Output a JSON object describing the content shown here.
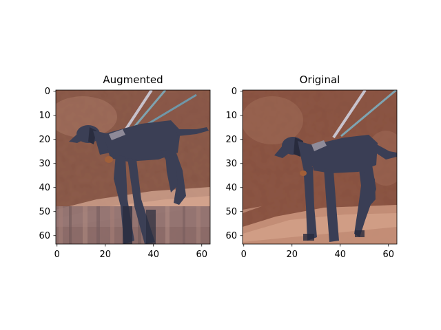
{
  "figure": {
    "background": "#ffffff"
  },
  "panels": [
    {
      "title": "Augmented",
      "image": {
        "description_colors": {
          "ground_dark": "#7a4a3c",
          "ground_mid": "#9a6a58",
          "ground_light": "#c89a86",
          "sandy_band": "#d9a892",
          "streak_band": "#8c6e6e",
          "dog_body": "#3b3f55",
          "dog_shadow": "#2a2d3f",
          "leash": "#7fa3b0",
          "collar": "#8e8a98",
          "tan_markings": "#a0603a"
        },
        "pixel_grid": 64
      },
      "x_ticks": [
        "0",
        "20",
        "40",
        "60"
      ],
      "x_tick_values": [
        0,
        20,
        40,
        60
      ],
      "y_ticks": [
        "0",
        "10",
        "20",
        "30",
        "40",
        "50",
        "60"
      ],
      "y_tick_values": [
        0,
        10,
        20,
        30,
        40,
        50,
        60
      ]
    },
    {
      "title": "Original",
      "image": {
        "description_colors": {
          "ground_dark": "#7c4637",
          "ground_mid": "#9c6452",
          "ground_light": "#c9937c",
          "sandy_band": "#d6a48c",
          "dog_body": "#3a3e55",
          "dog_shadow": "#282b3d",
          "leash": "#7ea4b2",
          "collar": "#8f8b99",
          "tan_markings": "#a25f38"
        },
        "pixel_grid": 64
      },
      "x_ticks": [
        "0",
        "20",
        "40",
        "60"
      ],
      "x_tick_values": [
        0,
        20,
        40,
        60
      ],
      "y_ticks": [
        "0",
        "10",
        "20",
        "30",
        "40",
        "50",
        "60"
      ],
      "y_tick_values": [
        0,
        10,
        20,
        30,
        40,
        50,
        60
      ]
    }
  ]
}
